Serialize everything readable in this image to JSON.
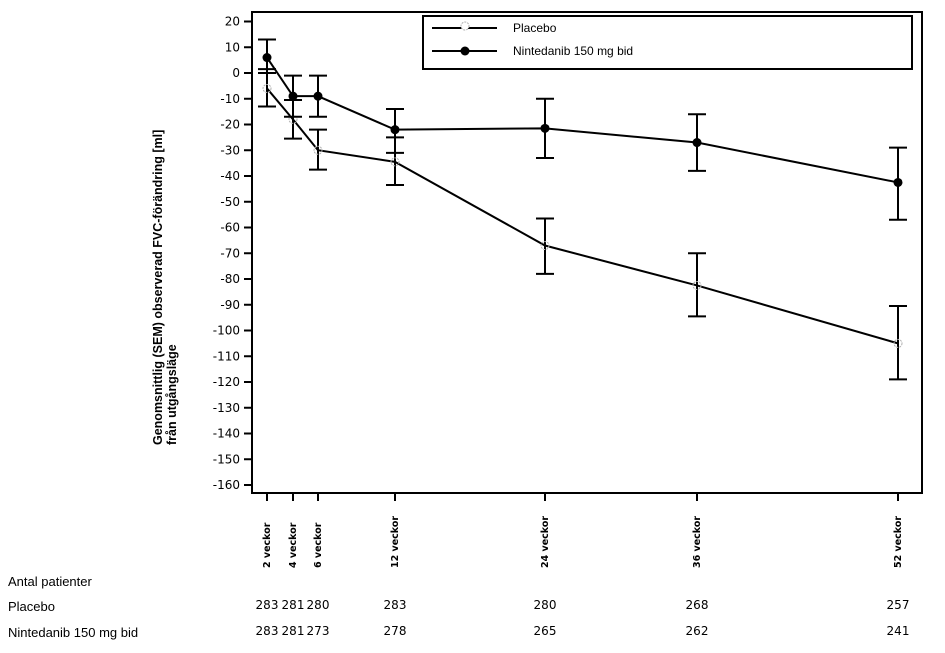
{
  "chart_data": {
    "type": "line",
    "title": "",
    "xlabel": "",
    "ylabel_lines": [
      "Genomsnittlig (SEM) observerad FVC-förändring [ml]",
      "från utgångsläge"
    ],
    "ylim": [
      -165,
      25
    ],
    "yticks": [
      20,
      10,
      0,
      -10,
      -20,
      -30,
      -40,
      -50,
      -60,
      -70,
      -80,
      -90,
      -100,
      -110,
      -120,
      -130,
      -140,
      -150,
      -160
    ],
    "grid": false,
    "legend_position": "top-right",
    "x_weeks": [
      2,
      4,
      6,
      12,
      24,
      36,
      52
    ],
    "categories": [
      "2 veckor",
      "4 veckor",
      "6 veckor",
      "12 veckor",
      "24 veckor",
      "36 veckor",
      "52 veckor"
    ],
    "xlim_weeks": [
      -1.5,
      53.5
    ],
    "series": [
      {
        "name": "Placebo",
        "marker": "open-circle",
        "color": "#000000",
        "marker_color": "#b0b0b0",
        "values": [
          -6,
          -18,
          -30,
          -34.5,
          -67,
          -82.5,
          -105
        ],
        "sem_low": [
          -13,
          -25.5,
          -37.5,
          -43.5,
          -78,
          -94.5,
          -119
        ],
        "sem_high": [
          1.5,
          -10.5,
          -22,
          -25,
          -56.5,
          -70,
          -90.5
        ]
      },
      {
        "name": "Nintedanib 150 mg bid",
        "marker": "filled-circle",
        "color": "#000000",
        "marker_color": "#000000",
        "values": [
          6,
          -9,
          -9,
          -22,
          -21.5,
          -27,
          -42.5
        ],
        "sem_low": [
          0,
          -17,
          -17,
          -31,
          -33,
          -38,
          -57
        ],
        "sem_high": [
          13,
          -1,
          -1,
          -14,
          -10,
          -16,
          -29
        ]
      }
    ]
  },
  "patients_table": {
    "heading": "Antal patienter",
    "rows": [
      {
        "label": "Placebo",
        "counts": [
          "283",
          "281",
          "280",
          "283",
          "280",
          "268",
          "257"
        ]
      },
      {
        "label": "Nintedanib 150 mg bid",
        "counts": [
          "283",
          "281",
          "273",
          "278",
          "265",
          "262",
          "241"
        ]
      }
    ]
  }
}
